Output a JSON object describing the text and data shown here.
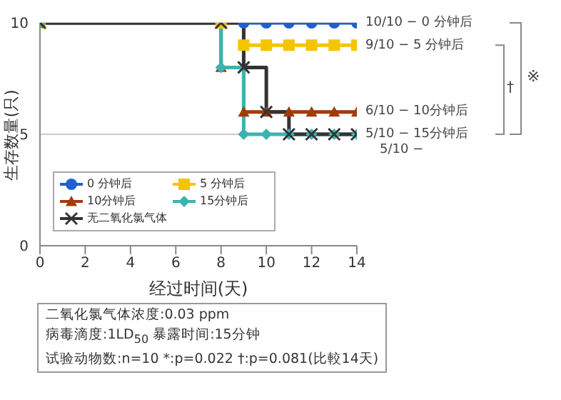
{
  "chart_data": {
    "type": "step",
    "xlabel": "经过时间(天)",
    "ylabel": "生存数量(只)",
    "x": [
      0,
      8,
      9,
      10,
      11,
      12,
      13,
      14
    ],
    "series": [
      {
        "name": "0 分钟后",
        "color": "#1f5fd0",
        "marker": "circle",
        "values": [
          10,
          10,
          10,
          10,
          10,
          10,
          10,
          10
        ]
      },
      {
        "name": "5 分钟后",
        "color": "#f5c400",
        "marker": "square",
        "values": [
          10,
          10,
          9,
          9,
          9,
          9,
          9,
          9
        ]
      },
      {
        "name": "10分钟后",
        "color": "#a33a06",
        "marker": "triangle",
        "values": [
          10,
          8,
          6,
          6,
          6,
          6,
          6,
          6
        ]
      },
      {
        "name": "15分钟后",
        "color": "#3db3b0",
        "marker": "diamond",
        "values": [
          10,
          8,
          5,
          5,
          5,
          5,
          5,
          5
        ]
      },
      {
        "name": "无二氧化氯气体",
        "color": "#333333",
        "marker": "cross",
        "values": [
          10,
          10,
          8,
          6,
          5,
          5,
          5,
          5
        ]
      }
    ],
    "xlim": [
      0,
      14
    ],
    "xticks": [
      0,
      2,
      4,
      6,
      8,
      10,
      12,
      14
    ],
    "ylim": [
      0,
      10
    ],
    "yticks": [
      0,
      5,
      10
    ],
    "grid": "y",
    "legend": "bottom left",
    "annotations": [
      "10/10 − 0 分钟后",
      "9/10 − 5 分钟后",
      "6/10 − 10分钟后",
      "5/10 − 15分钟后",
      "5/10 −",
      "†",
      "※",
      "二氧化氯气体浓度:0.03 ppm",
      "病毒滴度:1LD$_{50}$ 暴露时间:15分钟",
      "试验动物数:n=10 *:p=0.022 †:p=0.081(比較14天)"
    ]
  }
}
